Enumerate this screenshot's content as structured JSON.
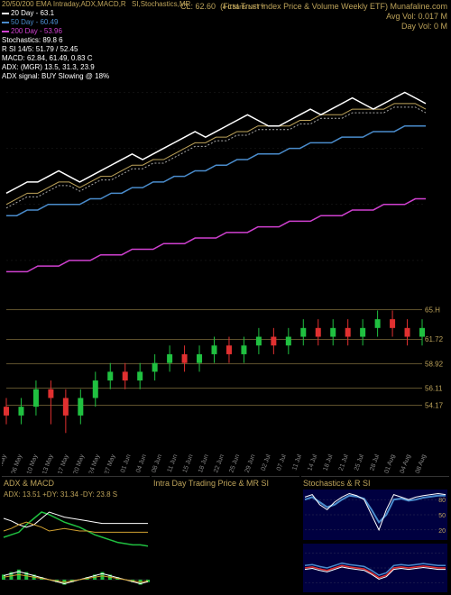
{
  "header": {
    "title_left": "20/50/200 EMA Intraday,ADX,MACD,R",
    "title_mid": "SI,Stochastics,MR",
    "cl_label": "CL:",
    "cl_value": "62.60",
    "charts_label": "4 Charts NFTY",
    "etf_label": "(First Trust Index Price & Volume Weekly ETF) Munafaline.com",
    "avg_vol": "Avg Vol: 0.017 M",
    "day_vol": "Day Vol: 0   M"
  },
  "legend": {
    "l1_label": "20 Day - 63.1",
    "l1_color": "#ffffff",
    "l2_label": "50 Day - 60.49",
    "l2_color": "#4a8ccc",
    "l3_label": "200 Day - 53.96",
    "l3_color": "#d040d0",
    "l4_label": "Stochastics: 89.8       6",
    "l5_label": "R      SI 14/5: 51.79 / 52.45",
    "l6_label": "MACD: 62.84, 61.49, 0.83 C",
    "l7_label": "ADX:                    (MGR) 13.5, 31.3, 23.9",
    "l8_label": "ADX signal:                       BUY Slowing @ 18%"
  },
  "main_chart": {
    "type": "line",
    "bg": "#000000",
    "ema20_color": "#ffffff",
    "ema50_color": "#4a8ccc",
    "ema200_color": "#d040d0",
    "dotted_color": "#aaaaaa",
    "gold_color": "#bda35a",
    "price": [
      52,
      53,
      54,
      54,
      55,
      56,
      55,
      54,
      55,
      56,
      57,
      58,
      59,
      58,
      59,
      60,
      61,
      62,
      63,
      62,
      63,
      64,
      65,
      66,
      65,
      64,
      64,
      65,
      66,
      67,
      66,
      67,
      68,
      69,
      68,
      67,
      68,
      69,
      70,
      69,
      68
    ],
    "ema20": [
      50,
      51,
      52,
      52,
      53,
      54,
      54,
      53,
      54,
      55,
      55,
      56,
      57,
      57,
      58,
      58,
      59,
      60,
      61,
      61,
      62,
      62,
      63,
      63,
      64,
      64,
      64,
      64,
      65,
      65,
      66,
      66,
      66,
      67,
      67,
      67,
      67,
      68,
      68,
      68,
      67
    ],
    "ema50": [
      48,
      48,
      49,
      49,
      50,
      50,
      50,
      50,
      51,
      51,
      52,
      52,
      53,
      53,
      54,
      54,
      55,
      55,
      56,
      56,
      57,
      57,
      58,
      58,
      59,
      59,
      59,
      60,
      60,
      61,
      61,
      61,
      62,
      62,
      62,
      63,
      63,
      63,
      64,
      64,
      64
    ],
    "ema200": [
      38,
      38,
      38,
      39,
      39,
      39,
      40,
      40,
      40,
      41,
      41,
      41,
      42,
      42,
      42,
      43,
      43,
      43,
      44,
      44,
      44,
      45,
      45,
      45,
      46,
      46,
      46,
      47,
      47,
      47,
      48,
      48,
      48,
      49,
      49,
      49,
      50,
      50,
      50,
      51,
      51
    ],
    "ymin": 35,
    "ymax": 72
  },
  "candle_chart": {
    "type": "candlestick",
    "bg": "#000000",
    "up_color": "#20c040",
    "down_color": "#e03030",
    "hlines": [
      65.1,
      61.72,
      58.92,
      56.11,
      54.17
    ],
    "hlabels": [
      "65.H",
      "61.72",
      "58.92",
      "56.11",
      "54.17"
    ],
    "hcolor": "#bda35a",
    "ymin": 50,
    "ymax": 67,
    "candles": [
      {
        "o": 54,
        "c": 53,
        "h": 55,
        "l": 52
      },
      {
        "o": 53,
        "c": 54,
        "h": 55,
        "l": 52
      },
      {
        "o": 54,
        "c": 56,
        "h": 57,
        "l": 53
      },
      {
        "o": 56,
        "c": 55,
        "h": 57,
        "l": 52
      },
      {
        "o": 55,
        "c": 53,
        "h": 56,
        "l": 51
      },
      {
        "o": 53,
        "c": 55,
        "h": 56,
        "l": 52
      },
      {
        "o": 55,
        "c": 57,
        "h": 58,
        "l": 54
      },
      {
        "o": 57,
        "c": 58,
        "h": 59,
        "l": 56
      },
      {
        "o": 58,
        "c": 57,
        "h": 59,
        "l": 56
      },
      {
        "o": 57,
        "c": 58,
        "h": 59,
        "l": 56
      },
      {
        "o": 58,
        "c": 59,
        "h": 60,
        "l": 57
      },
      {
        "o": 59,
        "c": 60,
        "h": 61,
        "l": 58
      },
      {
        "o": 60,
        "c": 59,
        "h": 61,
        "l": 58
      },
      {
        "o": 59,
        "c": 60,
        "h": 61,
        "l": 58
      },
      {
        "o": 60,
        "c": 61,
        "h": 62,
        "l": 59
      },
      {
        "o": 61,
        "c": 60,
        "h": 62,
        "l": 59
      },
      {
        "o": 60,
        "c": 61,
        "h": 62,
        "l": 59
      },
      {
        "o": 61,
        "c": 62,
        "h": 63,
        "l": 60
      },
      {
        "o": 62,
        "c": 61,
        "h": 63,
        "l": 60
      },
      {
        "o": 61,
        "c": 62,
        "h": 63,
        "l": 60
      },
      {
        "o": 62,
        "c": 63,
        "h": 64,
        "l": 61
      },
      {
        "o": 63,
        "c": 62,
        "h": 64,
        "l": 61
      },
      {
        "o": 62,
        "c": 63,
        "h": 64,
        "l": 61
      },
      {
        "o": 63,
        "c": 62,
        "h": 64,
        "l": 61
      },
      {
        "o": 62,
        "c": 63,
        "h": 64,
        "l": 61
      },
      {
        "o": 63,
        "c": 64,
        "h": 65,
        "l": 62
      },
      {
        "o": 64,
        "c": 63,
        "h": 65,
        "l": 62
      },
      {
        "o": 63,
        "c": 62,
        "h": 64,
        "l": 61
      },
      {
        "o": 62,
        "c": 63,
        "h": 64,
        "l": 61
      }
    ]
  },
  "x_axis": {
    "labels": [
      "03 May",
      "06 May",
      "10 May",
      "13 May",
      "17 May",
      "20 May",
      "24 May",
      "27 May",
      "01 Jun",
      "04 Jun",
      "08 Jun",
      "11 Jun",
      "15 Jun",
      "18 Jun",
      "22 Jun",
      "25 Jun",
      "29 Jun",
      "02 Jul",
      "07 Jul",
      "11 Jul",
      "14 Jul",
      "18 Jul",
      "21 Jul",
      "25 Jul",
      "28 Jul",
      "01 Aug",
      "04 Aug",
      "08 Aug"
    ],
    "color": "#888"
  },
  "sub1": {
    "title": "ADX  & MACD",
    "status": "ADX: 13.51 +DY: 31.34   -DY: 23.8 S",
    "bg": "#000",
    "colors": {
      "adx": "#20c040",
      "plus": "#ffffff",
      "minus": "#d0a030",
      "macd": "#888"
    },
    "adx": [
      20,
      22,
      24,
      30,
      35,
      40,
      38,
      35,
      32,
      30,
      28,
      25,
      22,
      20,
      18,
      16,
      15,
      14,
      14,
      13
    ],
    "plus": [
      35,
      33,
      30,
      28,
      30,
      35,
      40,
      38,
      36,
      35,
      34,
      33,
      32,
      31,
      31,
      31,
      31,
      31,
      31,
      31
    ],
    "minus": [
      25,
      27,
      30,
      32,
      30,
      28,
      25,
      26,
      27,
      26,
      25,
      25,
      24,
      24,
      24,
      24,
      24,
      24,
      24,
      24
    ],
    "hist": [
      2,
      3,
      4,
      3,
      2,
      1,
      0,
      -1,
      -2,
      -1,
      0,
      1,
      2,
      3,
      2,
      1,
      0,
      -1,
      -2,
      -1
    ]
  },
  "sub2": {
    "title": "Intra  Day Trading Price  & MR        SI"
  },
  "sub3": {
    "title": "Stochastics & R       SI",
    "bg": "#000040",
    "hlines": [
      80,
      50,
      20
    ],
    "stoch_k_color": "#ffffff",
    "stoch_d_color": "#4a8ccc",
    "rsi_color": "#e03030",
    "k": [
      85,
      90,
      70,
      60,
      75,
      85,
      92,
      88,
      80,
      50,
      20,
      60,
      90,
      85,
      80,
      85,
      88,
      90,
      92,
      90
    ],
    "d": [
      80,
      85,
      75,
      65,
      70,
      80,
      88,
      86,
      82,
      60,
      35,
      50,
      80,
      82,
      78,
      80,
      84,
      86,
      88,
      88
    ],
    "r": [
      50,
      52,
      48,
      45,
      50,
      55,
      52,
      50,
      48,
      40,
      30,
      35,
      50,
      52,
      50,
      52,
      54,
      52,
      50,
      50
    ]
  }
}
